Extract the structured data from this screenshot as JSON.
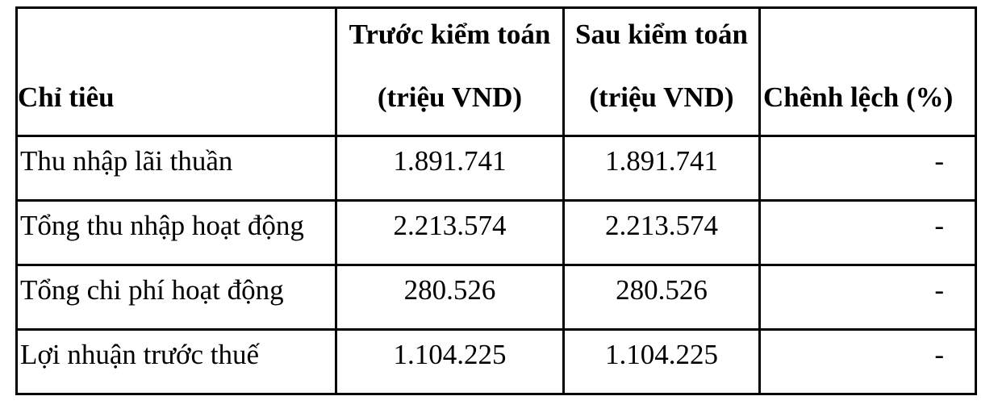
{
  "table": {
    "headers": [
      {
        "line1": "",
        "line2": "Chỉ tiêu"
      },
      {
        "line1": "Trước kiểm toán",
        "line2": "(triệu VND)"
      },
      {
        "line1": "Sau kiểm toán",
        "line2": "(triệu VND)"
      },
      {
        "line1": "",
        "line2": "Chênh lệch (%)"
      }
    ],
    "rows": [
      {
        "label": "Thu nhập lãi thuần",
        "before": "1.891.741",
        "after": "1.891.741",
        "diff": "-"
      },
      {
        "label": "Tổng thu nhập hoạt động",
        "before": "2.213.574",
        "after": "2.213.574",
        "diff": "-"
      },
      {
        "label": "Tổng chi phí hoạt động",
        "before": "280.526",
        "after": "280.526",
        "diff": "-"
      },
      {
        "label": "Lợi nhuận trước thuế",
        "before": "1.104.225",
        "after": "1.104.225",
        "diff": "-"
      }
    ]
  }
}
